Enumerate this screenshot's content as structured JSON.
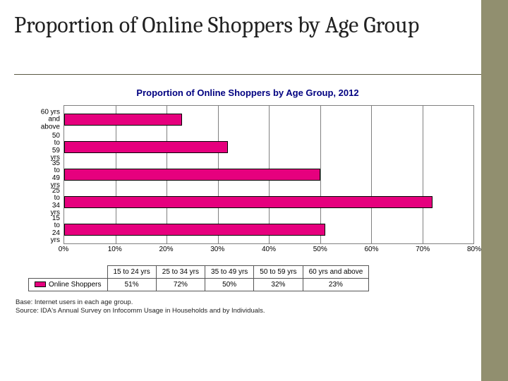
{
  "title": "Proportion of Online Shoppers by Age Group",
  "chart": {
    "type": "bar-horizontal",
    "title": "Proportion of Online Shoppers by Age Group, 2012",
    "categories": [
      "60 yrs and\nabove",
      "50 to 59 yrs",
      "35 to 49 yrs",
      "25 to 34 yrs",
      "15 to 24 yrs"
    ],
    "values": [
      23,
      32,
      50,
      72,
      51
    ],
    "bar_color": "#e6007e",
    "bar_border": "#000000",
    "xmin": 0,
    "xmax": 80,
    "xtick_step": 10,
    "xtick_suffix": "%",
    "grid_color": "#808080",
    "background": "#ffffff",
    "title_color": "#000080",
    "title_fontsize": 13
  },
  "legend": {
    "row_label": "Online Shoppers",
    "columns": [
      "15 to 24 yrs",
      "25 to 34 yrs",
      "35 to 49 yrs",
      "50 to 59 yrs",
      "60 yrs and above"
    ],
    "values": [
      "51%",
      "72%",
      "50%",
      "32%",
      "23%"
    ]
  },
  "notes": {
    "line1": "Base: Internet users in each age group.",
    "line2": "Source: IDA's Annual Survey on Infocomm Usage in Households and by Individuals."
  },
  "decor": {
    "band_color": "#918f6f",
    "rule_color": "#5a5943"
  }
}
